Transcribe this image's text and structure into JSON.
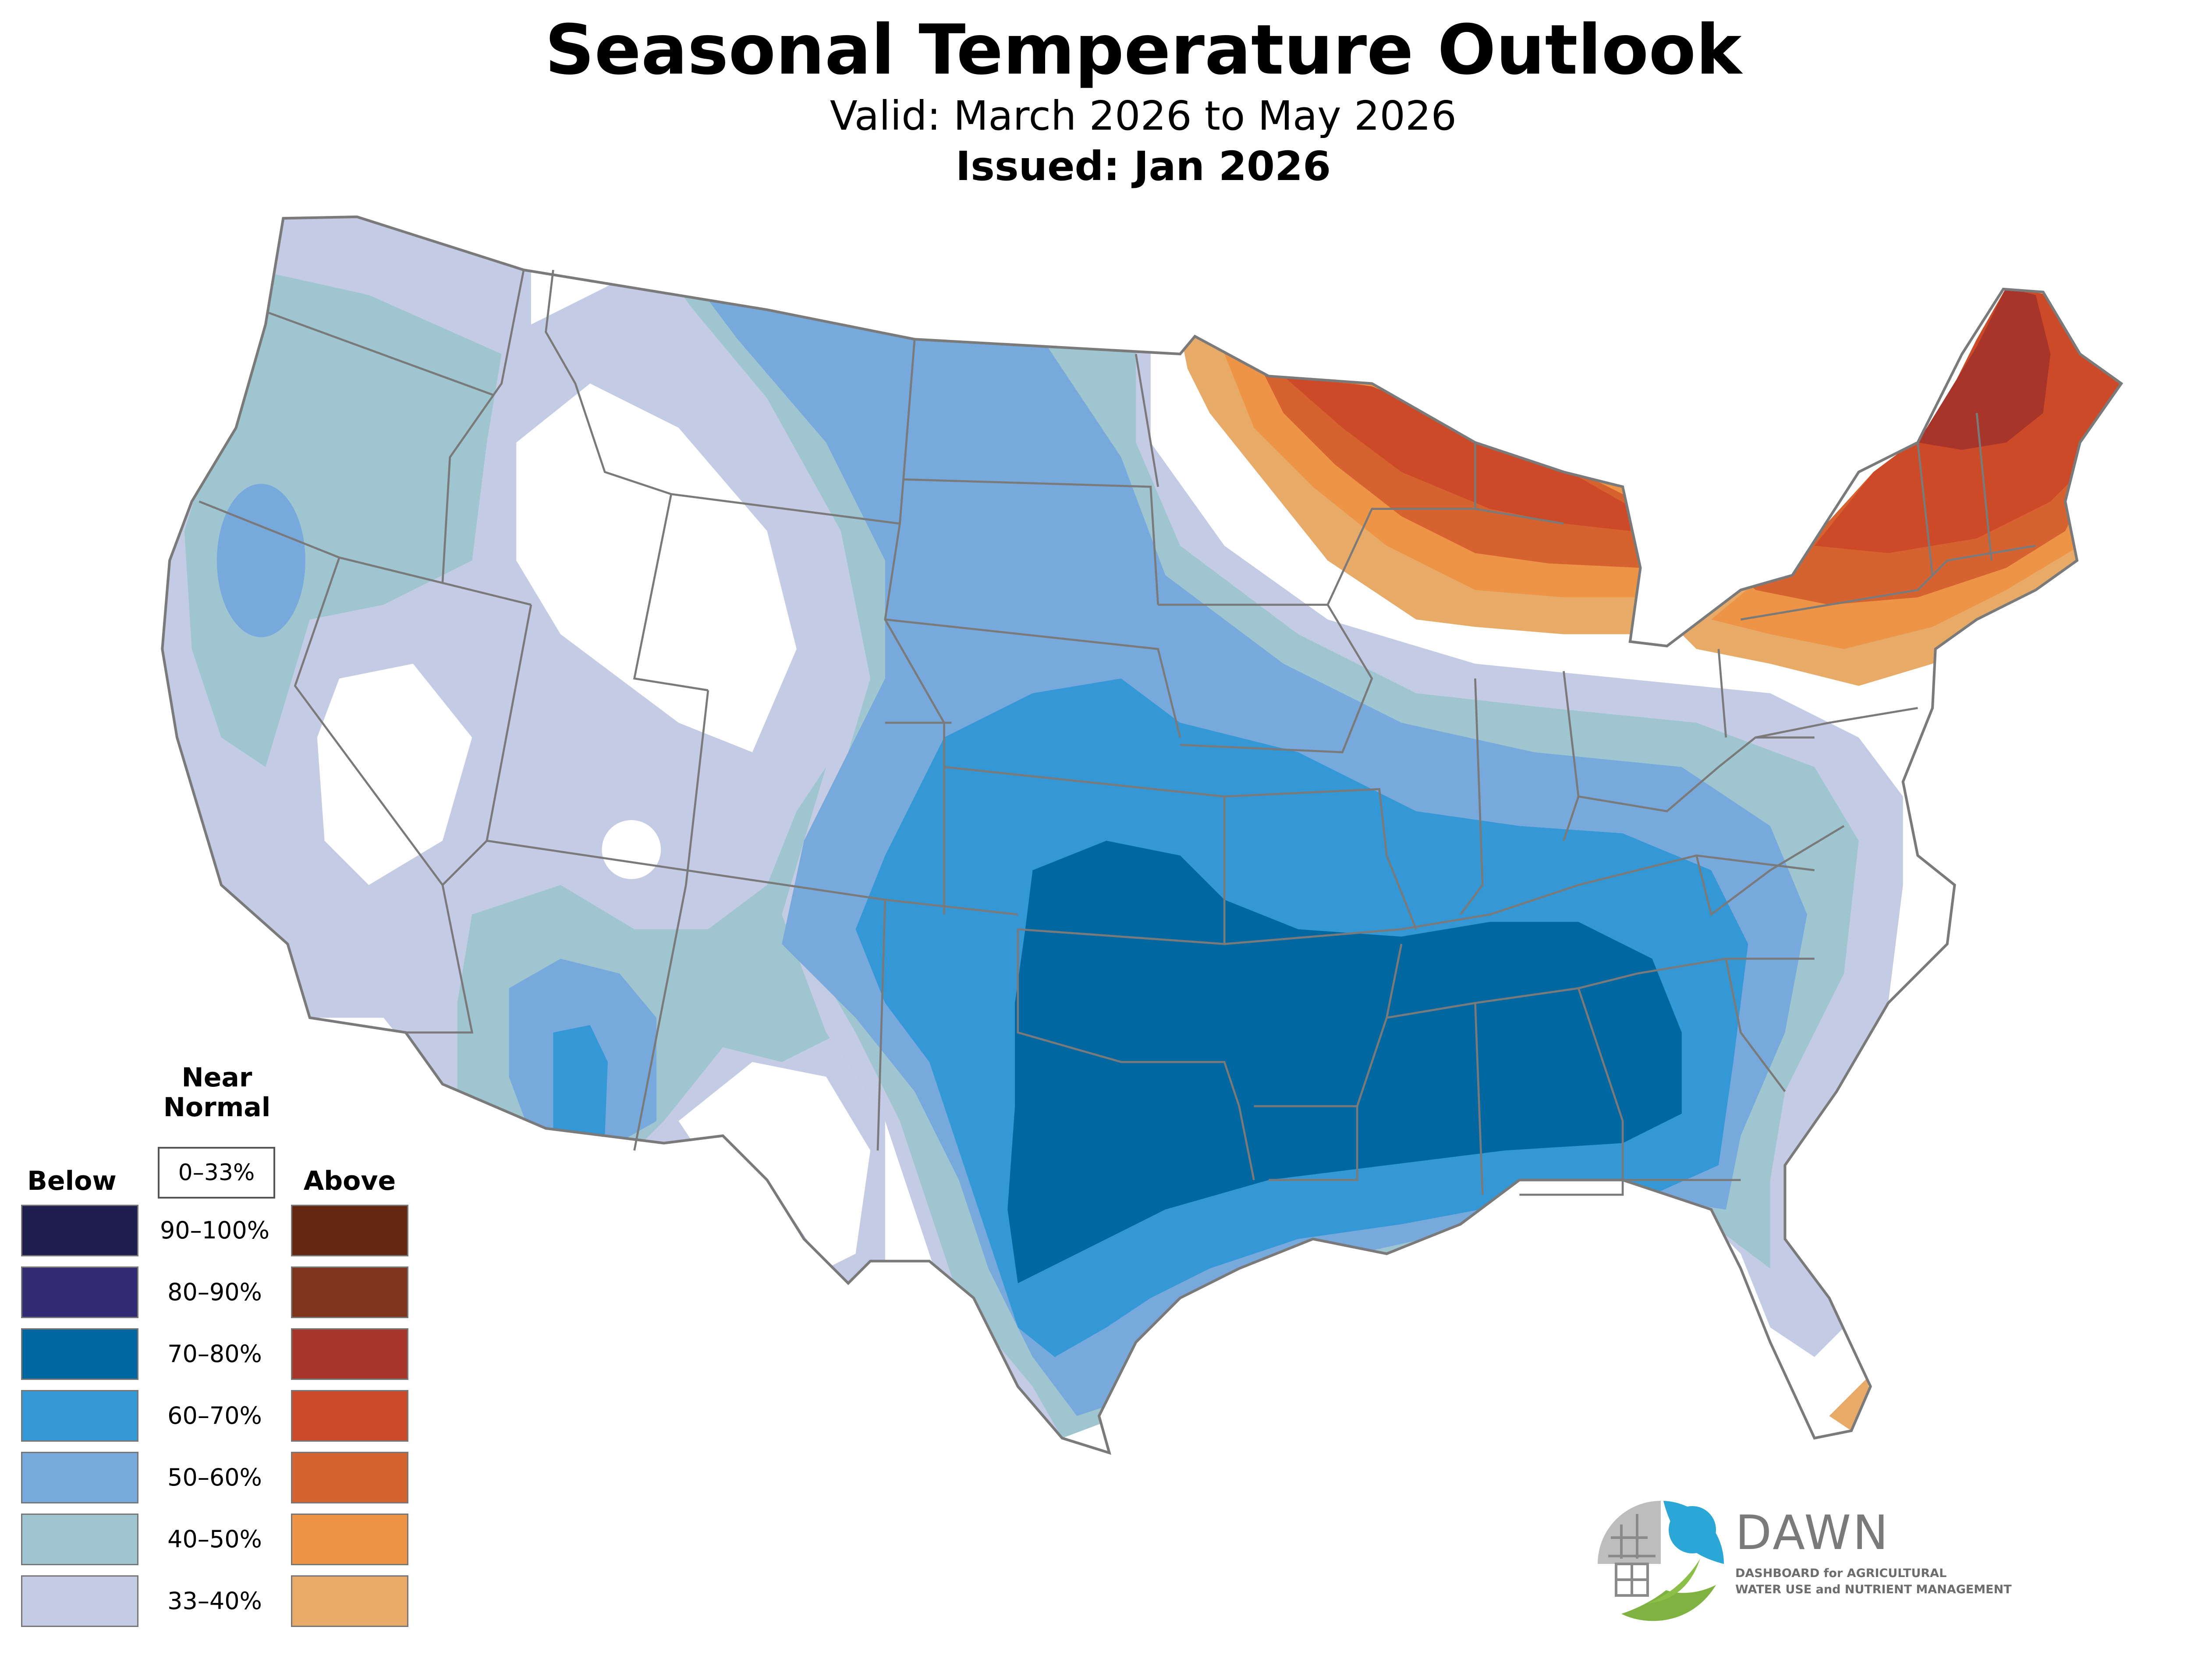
{
  "title": "Seasonal Temperature Outlook",
  "valid": "Valid: March 2026 to May 2026",
  "issued": "Issued: Jan 2026",
  "legend": {
    "near_normal_heading": "Near\nNormal",
    "near_normal_range": "0–33%",
    "below_heading": "Below",
    "above_heading": "Above",
    "ranges": [
      "90–100%",
      "80–90%",
      "70–80%",
      "60–70%",
      "50–60%",
      "40–50%",
      "33–40%"
    ],
    "below_colors": [
      "#1f1f4f",
      "#332b74",
      "#0067a1",
      "#3398d5",
      "#78a9dc",
      "#9ec5d0",
      "#c4cbe4"
    ],
    "above_colors": [
      "#652612",
      "#7f341c",
      "#a8352a",
      "#cd4a29",
      "#d6632f",
      "#ed9446",
      "#e8aa67"
    ]
  },
  "logo": {
    "name": "DAWN",
    "tagline_line1": "DASHBOARD for AGRICULTURAL",
    "tagline_line2": "WATER USE and NUTRIENT MANAGEMENT",
    "icon": "dawn-logo-icon"
  }
}
